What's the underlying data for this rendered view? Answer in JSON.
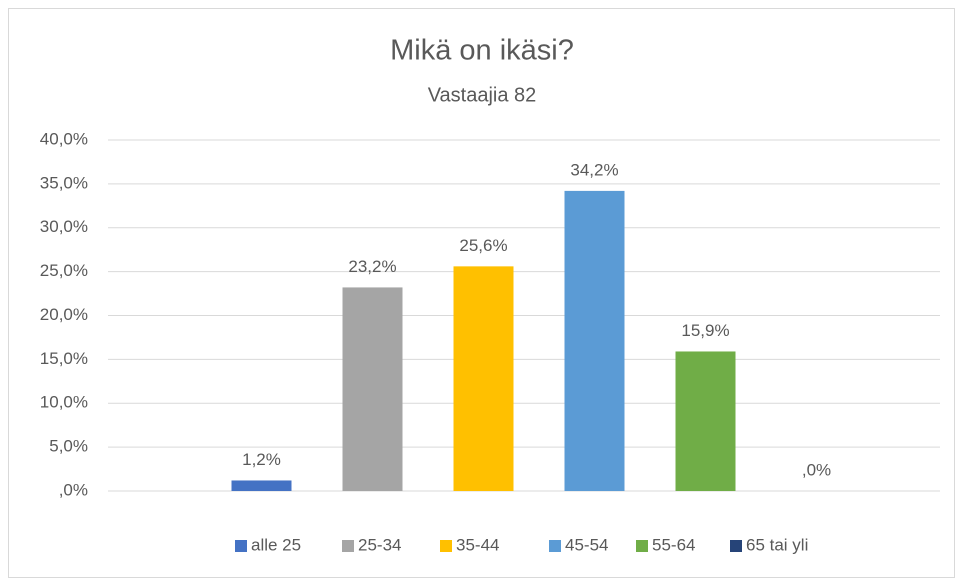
{
  "chart_data": {
    "type": "bar",
    "title": "Mikä on ikäsi?",
    "subtitle": "Vastaajia 82",
    "categories": [
      null
    ],
    "series": [
      {
        "name": "alle 25",
        "color": "#4472c4",
        "values": [
          1.2
        ],
        "value_labels": [
          "1,2%"
        ]
      },
      {
        "name": "25-34",
        "color": "#a5a5a5",
        "values": [
          23.2
        ],
        "value_labels": [
          "23,2%"
        ]
      },
      {
        "name": "35-44",
        "color": "#ffc000",
        "values": [
          25.6
        ],
        "value_labels": [
          "25,6%"
        ]
      },
      {
        "name": "45-54",
        "color": "#5b9bd5",
        "values": [
          34.2
        ],
        "value_labels": [
          "34,2%"
        ]
      },
      {
        "name": "55-64",
        "color": "#70ad47",
        "values": [
          15.9
        ],
        "value_labels": [
          "15,9%"
        ]
      },
      {
        "name": "65 tai yli",
        "color": "#264478",
        "values": [
          0
        ],
        "value_labels": [
          ",0%"
        ]
      }
    ],
    "ylim": [
      0,
      40
    ],
    "yticks": [
      {
        "value": 0,
        "label": ",0%"
      },
      {
        "value": 5,
        "label": "5,0%"
      },
      {
        "value": 10,
        "label": "10,0%"
      },
      {
        "value": 15,
        "label": "15,0%"
      },
      {
        "value": 20,
        "label": "20,0%"
      },
      {
        "value": 25,
        "label": "25,0%"
      },
      {
        "value": 30,
        "label": "30,0%"
      },
      {
        "value": 35,
        "label": "35,0%"
      },
      {
        "value": 40,
        "label": "40,0%"
      }
    ],
    "grid": true,
    "legend": "bottom"
  }
}
